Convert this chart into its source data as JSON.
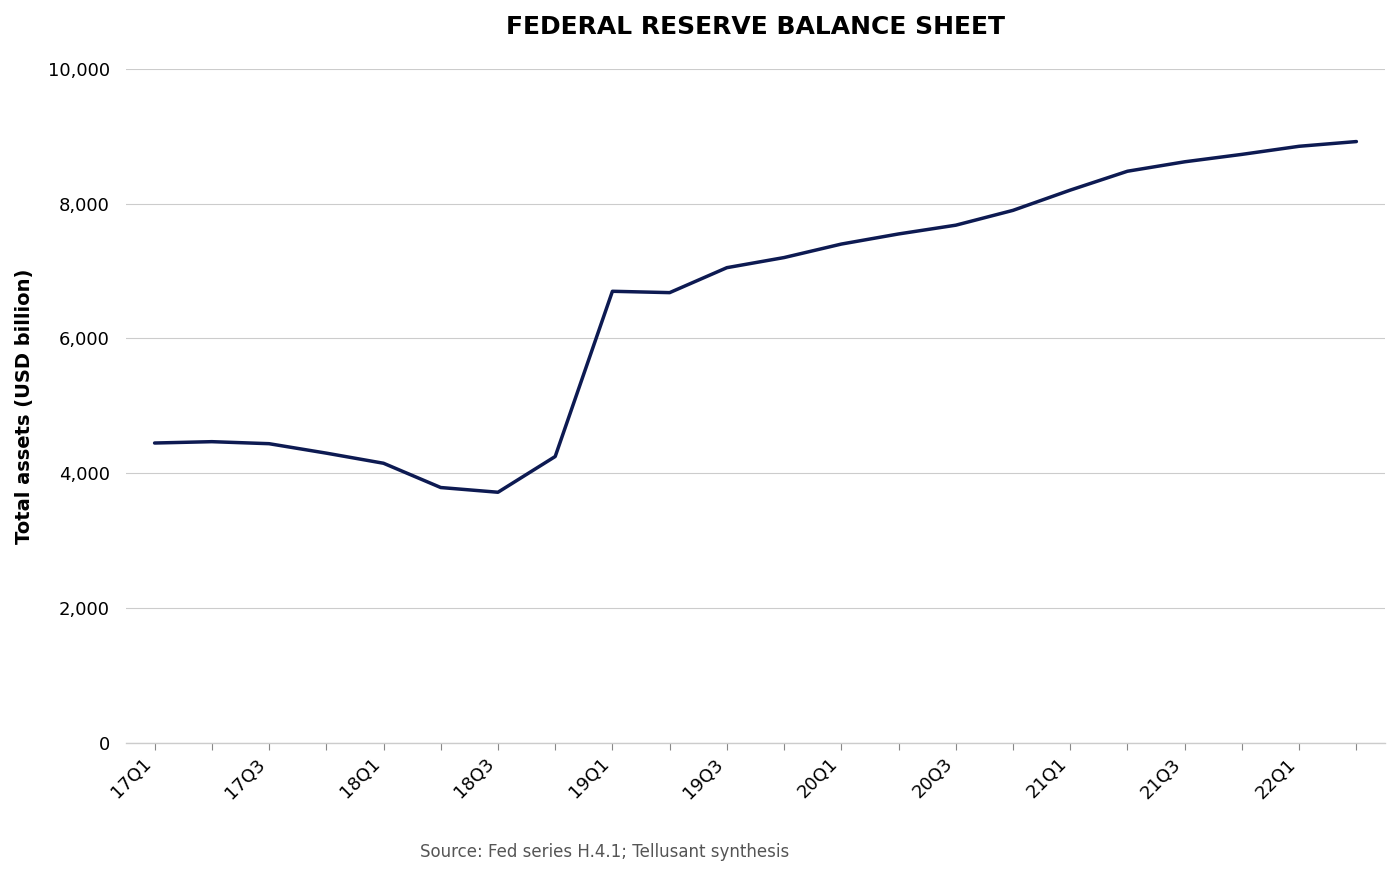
{
  "title": "FEDERAL RESERVE BALANCE SHEET",
  "ylabel": "Total assets (USD billion)",
  "source": "Source: Fed series H.4.1; Tellusant synthesis",
  "line_color": "#0d1a52",
  "background_color": "#ffffff",
  "grid_color": "#cccccc",
  "x_labels": [
    "17Q1",
    "17Q3",
    "18Q1",
    "18Q3",
    "19Q1",
    "19Q3",
    "20Q1",
    "20Q3",
    "21Q1",
    "21Q3",
    "22Q1"
  ],
  "label_x_positions": [
    0,
    2,
    4,
    6,
    8,
    10,
    12,
    14,
    16,
    18,
    20
  ],
  "x_data": [
    0,
    1,
    2,
    3,
    4,
    5,
    6,
    7,
    8,
    9,
    10,
    11,
    12,
    13,
    14,
    15,
    16,
    17,
    18,
    19,
    20,
    21
  ],
  "y_data": [
    4450,
    4470,
    4440,
    4300,
    4150,
    3790,
    3720,
    4250,
    6700,
    6680,
    7050,
    7200,
    7400,
    7550,
    7680,
    7900,
    8200,
    8480,
    8620,
    8730,
    8850,
    8920
  ],
  "ylim": [
    0,
    10000
  ],
  "yticks": [
    0,
    2000,
    4000,
    6000,
    8000,
    10000
  ],
  "title_fontsize": 18,
  "label_fontsize": 14,
  "tick_fontsize": 13,
  "source_fontsize": 12,
  "line_width": 2.5
}
